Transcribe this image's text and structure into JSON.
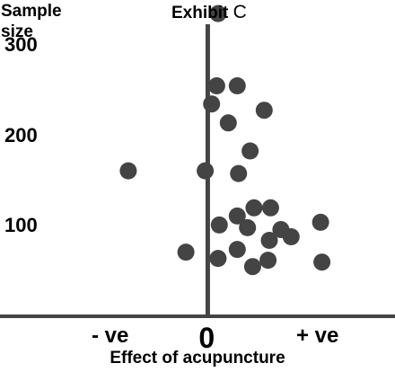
{
  "chart_data": {
    "type": "scatter",
    "title": "Exhibit",
    "title_suffix": "C",
    "ylabel_lines": [
      "Sample",
      "size"
    ],
    "xlabel": "Effect of acupuncture",
    "x_tick_labels": {
      "negative": "- ve",
      "zero": "0",
      "positive": "+ ve"
    },
    "y_ticks": [
      100,
      200,
      300
    ],
    "ylim": [
      0,
      350
    ],
    "xlim": [
      -1.62,
      1.46
    ],
    "grid": false,
    "marker_color": "#444444",
    "axis_color": "#444444",
    "points": [
      {
        "x": 0.08,
        "y": 335
      },
      {
        "x": 0.07,
        "y": 255
      },
      {
        "x": 0.23,
        "y": 255
      },
      {
        "x": 0.03,
        "y": 235
      },
      {
        "x": 0.44,
        "y": 228
      },
      {
        "x": 0.16,
        "y": 214
      },
      {
        "x": 0.33,
        "y": 183
      },
      {
        "x": -0.62,
        "y": 161
      },
      {
        "x": -0.02,
        "y": 161
      },
      {
        "x": 0.24,
        "y": 158
      },
      {
        "x": 0.36,
        "y": 120
      },
      {
        "x": 0.49,
        "y": 120
      },
      {
        "x": 0.23,
        "y": 111
      },
      {
        "x": 0.09,
        "y": 101
      },
      {
        "x": 0.31,
        "y": 98
      },
      {
        "x": 0.57,
        "y": 96
      },
      {
        "x": 0.65,
        "y": 88
      },
      {
        "x": 0.48,
        "y": 84
      },
      {
        "x": 0.88,
        "y": 104
      },
      {
        "x": 0.23,
        "y": 74
      },
      {
        "x": -0.17,
        "y": 71
      },
      {
        "x": 0.08,
        "y": 64
      },
      {
        "x": 0.47,
        "y": 62
      },
      {
        "x": 0.35,
        "y": 55
      },
      {
        "x": 0.89,
        "y": 60
      }
    ]
  }
}
